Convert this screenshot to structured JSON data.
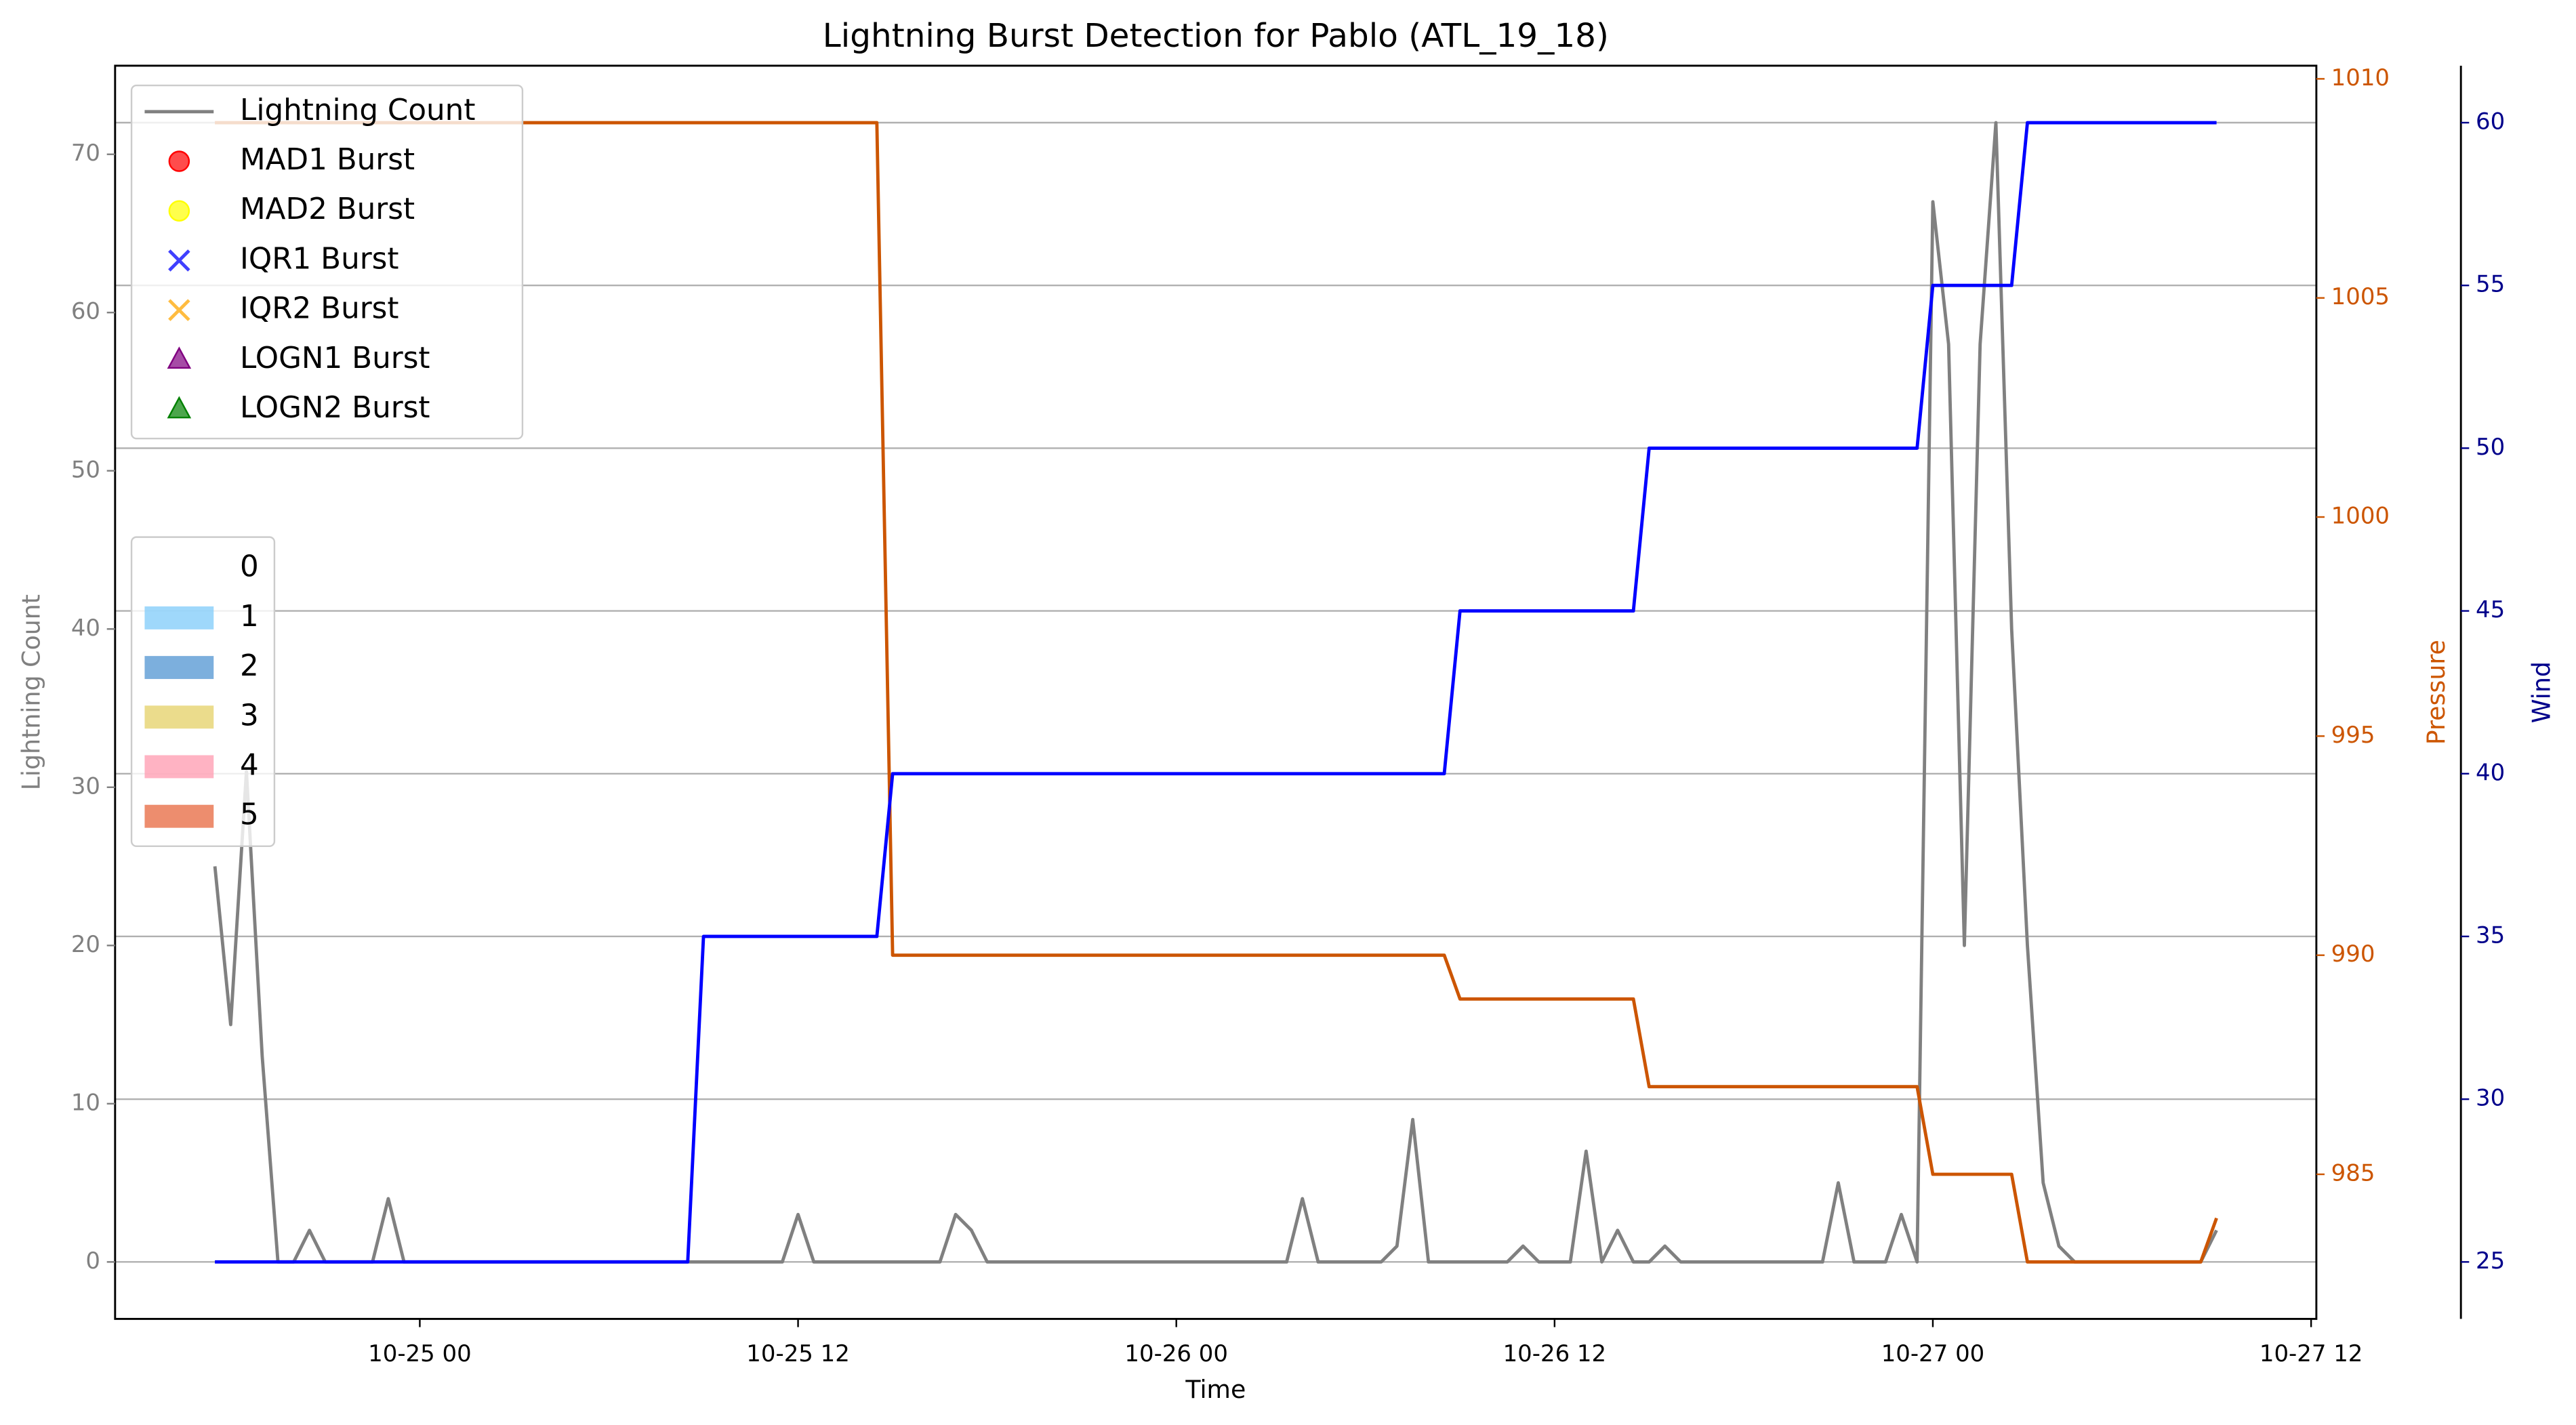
{
  "chart_data": {
    "type": "line",
    "title": "Lightning Burst Detection for Pablo (ATL_19_18)",
    "x_label": "Time",
    "xlim": [
      "10-24 14:20",
      "10-27 12:10"
    ],
    "xticks": [
      "10-25 00",
      "10-25 12",
      "10-26 00",
      "10-26 12",
      "10-27 00",
      "10-27 12"
    ],
    "x": [
      "10-24 17:30",
      "10-24 18:00",
      "10-24 18:30",
      "10-24 19:00",
      "10-24 19:30",
      "10-24 20:00",
      "10-24 20:30",
      "10-24 21:00",
      "10-24 21:30",
      "10-24 22:00",
      "10-24 22:30",
      "10-24 23:00",
      "10-24 23:30",
      "10-25 00:00",
      "10-25 00:30",
      "10-25 01:00",
      "10-25 01:30",
      "10-25 02:00",
      "10-25 02:30",
      "10-25 03:00",
      "10-25 03:30",
      "10-25 04:00",
      "10-25 04:30",
      "10-25 05:00",
      "10-25 05:30",
      "10-25 06:00",
      "10-25 06:30",
      "10-25 07:00",
      "10-25 07:30",
      "10-25 08:00",
      "10-25 08:30",
      "10-25 09:00",
      "10-25 09:30",
      "10-25 10:00",
      "10-25 10:30",
      "10-25 11:00",
      "10-25 11:30",
      "10-25 12:00",
      "10-25 12:30",
      "10-25 13:00",
      "10-25 13:30",
      "10-25 14:00",
      "10-25 14:30",
      "10-25 15:00",
      "10-25 15:30",
      "10-25 16:00",
      "10-25 16:30",
      "10-25 17:00",
      "10-25 17:30",
      "10-25 18:00",
      "10-25 18:30",
      "10-25 19:00",
      "10-25 19:30",
      "10-25 20:00",
      "10-25 20:30",
      "10-25 21:00",
      "10-25 21:30",
      "10-25 22:00",
      "10-25 22:30",
      "10-25 23:00",
      "10-25 23:30",
      "10-26 00:00",
      "10-26 00:30",
      "10-26 01:00",
      "10-26 01:30",
      "10-26 02:00",
      "10-26 02:30",
      "10-26 03:00",
      "10-26 03:30",
      "10-26 04:00",
      "10-26 04:30",
      "10-26 05:00",
      "10-26 05:30",
      "10-26 06:00",
      "10-26 06:30",
      "10-26 07:00",
      "10-26 07:30",
      "10-26 08:00",
      "10-26 08:30",
      "10-26 09:00",
      "10-26 09:30",
      "10-26 10:00",
      "10-26 10:30",
      "10-26 11:00",
      "10-26 11:30",
      "10-26 12:00",
      "10-26 12:30",
      "10-26 13:00",
      "10-26 13:30",
      "10-26 14:00",
      "10-26 14:30",
      "10-26 15:00",
      "10-26 15:30",
      "10-26 16:00",
      "10-26 16:30",
      "10-26 17:00",
      "10-26 17:30",
      "10-26 18:00",
      "10-26 18:30",
      "10-26 19:00",
      "10-26 19:30",
      "10-26 20:00",
      "10-26 20:30",
      "10-26 21:00",
      "10-26 21:30",
      "10-26 22:00",
      "10-26 22:30",
      "10-26 23:00",
      "10-26 23:30",
      "10-27 00:00",
      "10-27 00:30",
      "10-27 01:00",
      "10-27 01:30",
      "10-27 02:00",
      "10-27 02:30",
      "10-27 03:00",
      "10-27 03:30",
      "10-27 04:00",
      "10-27 04:30",
      "10-27 05:00",
      "10-27 05:30",
      "10-27 06:00",
      "10-27 06:30",
      "10-27 07:00",
      "10-27 07:30",
      "10-27 08:00",
      "10-27 08:30",
      "10-27 09:00"
    ],
    "series": [
      {
        "name": "Lightning Count",
        "color": "#808080",
        "axis": "y",
        "values": [
          25,
          15,
          31,
          13,
          0,
          0,
          2,
          0,
          0,
          0,
          0,
          4,
          0,
          0,
          0,
          0,
          0,
          0,
          0,
          0,
          0,
          0,
          0,
          0,
          0,
          0,
          0,
          0,
          0,
          0,
          0,
          0,
          0,
          0,
          0,
          0,
          0,
          3,
          0,
          0,
          0,
          0,
          0,
          0,
          0,
          0,
          0,
          3,
          2,
          0,
          0,
          0,
          0,
          0,
          0,
          0,
          0,
          0,
          0,
          0,
          0,
          0,
          0,
          0,
          0,
          0,
          0,
          0,
          0,
          4,
          0,
          0,
          0,
          0,
          0,
          1,
          9,
          0,
          0,
          0,
          0,
          0,
          0,
          1,
          0,
          0,
          0,
          7,
          0,
          2,
          0,
          0,
          1,
          0,
          0,
          0,
          0,
          0,
          0,
          0,
          0,
          0,
          0,
          5,
          0,
          0,
          0,
          3,
          0,
          67,
          58,
          20,
          58,
          72,
          40,
          20,
          5,
          1,
          0,
          0,
          0,
          0,
          0,
          0,
          0,
          0,
          0,
          2
        ]
      },
      {
        "color": "#cc5500",
        "axis": "y2",
        "x": [
          "10-24 17:30",
          "10-25 14:30",
          "10-25 15:00",
          "10-26 08:30",
          "10-26 09:00",
          "10-26 14:30",
          "10-26 15:00",
          "10-26 23:30",
          "10-27 00:00",
          "10-27 02:30",
          "10-27 03:00",
          "10-27 08:30",
          "10-27 09:00"
        ],
        "values": [
          1009,
          1009,
          990,
          990,
          989,
          989,
          987,
          987,
          985,
          985,
          983,
          983,
          984
        ]
      },
      {
        "color": "#0000ff",
        "axis": "y3",
        "x": [
          "10-24 17:30",
          "10-25 08:30",
          "10-25 09:00",
          "10-25 14:30",
          "10-25 15:00",
          "10-26 08:30",
          "10-26 09:00",
          "10-26 14:30",
          "10-26 15:00",
          "10-26 23:30",
          "10-27 00:00",
          "10-27 02:30",
          "10-27 03:00",
          "10-27 09:00"
        ],
        "values": [
          25,
          25,
          35,
          35,
          40,
          40,
          45,
          45,
          50,
          50,
          55,
          55,
          60,
          60
        ]
      }
    ],
    "y_label": "Lightning Count",
    "ylim": [
      -3.6,
      75.6
    ],
    "yticks": [
      0,
      10,
      20,
      30,
      40,
      50,
      60,
      70
    ],
    "y2_label": "Pressure",
    "y2lim": [
      981.7,
      1010.3
    ],
    "y2ticks": [
      985,
      990,
      995,
      1000,
      1005,
      1010
    ],
    "y3_label": "Wind",
    "y3_color": "#00008b",
    "y3lim": [
      23.25,
      61.75
    ],
    "y3ticks": [
      25,
      30,
      35,
      40,
      45,
      50,
      55,
      60
    ],
    "grid": "y3",
    "legend": {
      "location": "upper left",
      "entries": [
        {
          "name": "MAD1 Burst",
          "color": "#ff0000",
          "marker": "o"
        },
        {
          "name": "MAD2 Burst",
          "color": "#ffff00",
          "marker": "o"
        },
        {
          "name": "IQR1 Burst",
          "color": "#0000ff",
          "marker": "x"
        },
        {
          "name": "IQR2 Burst",
          "color": "#ffa500",
          "marker": "x"
        },
        {
          "name": "LOGN1 Burst",
          "color": "#800080",
          "marker": "^"
        },
        {
          "name": "LOGN2 Burst",
          "color": "#008000",
          "marker": "^"
        }
      ]
    },
    "category_legend": {
      "location": "center left",
      "entries": [
        {
          "name": "0",
          "color": "#ffffff"
        },
        {
          "name": "1",
          "color": "#87cefa"
        },
        {
          "name": "2",
          "color": "#5b9bd5"
        },
        {
          "name": "3",
          "color": "#e6d36f"
        },
        {
          "name": "4",
          "color": "#ffa0b4"
        },
        {
          "name": "5",
          "color": "#e9704a"
        }
      ]
    }
  }
}
